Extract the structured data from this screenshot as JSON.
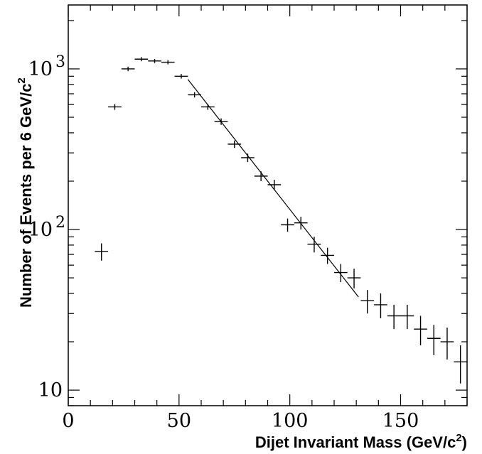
{
  "chart_data": {
    "type": "scatter",
    "title": "",
    "xlabel": "Dijet Invariant Mass (GeV/c",
    "xlabel_sup": "2",
    "xlabel_end": ")",
    "ylabel": "Number of Events per 6 GeV/c",
    "ylabel_sup": "2",
    "xlim": [
      0,
      180
    ],
    "ylim": [
      8,
      2500
    ],
    "yscale": "log",
    "grid": false,
    "x_ticks": [
      {
        "value": 0,
        "label": "0"
      },
      {
        "value": 50,
        "label": "50"
      },
      {
        "value": 100,
        "label": "100"
      },
      {
        "value": 150,
        "label": "150"
      }
    ],
    "y_ticks": [
      {
        "value": 10,
        "label": "10",
        "sup": ""
      },
      {
        "value": 100,
        "label": "10",
        "sup": "2"
      },
      {
        "value": 1000,
        "label": "10",
        "sup": "3"
      }
    ],
    "series": [
      {
        "type": "errorbar",
        "x_halfwidth": 3,
        "points": [
          {
            "x": 15,
            "y": 73,
            "err": 9
          },
          {
            "x": 21,
            "y": 580,
            "err": 24
          },
          {
            "x": 27,
            "y": 1000,
            "err": 32
          },
          {
            "x": 33,
            "y": 1150,
            "err": 34
          },
          {
            "x": 39,
            "y": 1120,
            "err": 33
          },
          {
            "x": 45,
            "y": 1100,
            "err": 33
          },
          {
            "x": 51,
            "y": 900,
            "err": 30
          },
          {
            "x": 57,
            "y": 690,
            "err": 26
          },
          {
            "x": 63,
            "y": 580,
            "err": 24
          },
          {
            "x": 69,
            "y": 470,
            "err": 22
          },
          {
            "x": 75,
            "y": 340,
            "err": 18
          },
          {
            "x": 81,
            "y": 280,
            "err": 17
          },
          {
            "x": 87,
            "y": 215,
            "err": 15
          },
          {
            "x": 93,
            "y": 190,
            "err": 14
          },
          {
            "x": 99,
            "y": 107,
            "err": 10
          },
          {
            "x": 105,
            "y": 110,
            "err": 10
          },
          {
            "x": 111,
            "y": 81,
            "err": 9
          },
          {
            "x": 117,
            "y": 69,
            "err": 8
          },
          {
            "x": 123,
            "y": 54,
            "err": 7
          },
          {
            "x": 129,
            "y": 50,
            "err": 7
          },
          {
            "x": 135,
            "y": 36,
            "err": 6
          },
          {
            "x": 141,
            "y": 34,
            "err": 6
          },
          {
            "x": 147,
            "y": 29,
            "err": 5
          },
          {
            "x": 153,
            "y": 29,
            "err": 5
          },
          {
            "x": 159,
            "y": 24,
            "err": 5
          },
          {
            "x": 165,
            "y": 21,
            "err": 4.5
          },
          {
            "x": 171,
            "y": 20,
            "err": 4.5
          },
          {
            "x": 177,
            "y": 15,
            "err": 4
          }
        ]
      },
      {
        "type": "line",
        "points": [
          {
            "x": 54,
            "y": 860
          },
          {
            "x": 131,
            "y": 38
          }
        ]
      }
    ]
  }
}
